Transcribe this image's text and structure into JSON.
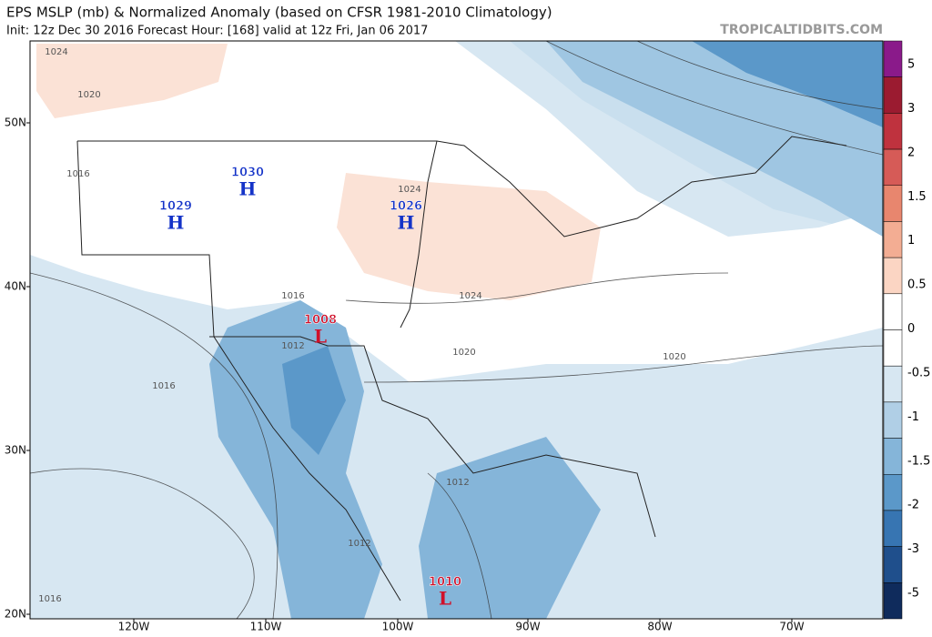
{
  "header": {
    "title": "EPS MSLP (mb) & Normalized Anomaly (based on CFSR 1981-2010 Climatology)",
    "subtitle": "Init: 12z Dec 30 2016   Forecast Hour: [168]   valid at 12z Fri, Jan 06 2017",
    "watermark": "TROPICALTIDBITS.COM"
  },
  "colorbar": {
    "labels": [
      5,
      3,
      2,
      1.5,
      1,
      0.5,
      0,
      -0.5,
      -1,
      -1.5,
      -2,
      -3,
      -5
    ],
    "colors": [
      "#8a1a8a",
      "#9b1b30",
      "#bf323e",
      "#d65b57",
      "#e8866e",
      "#f3ad93",
      "#fbd5c3",
      "#ffffff",
      "#ffffff",
      "#d7e7f2",
      "#b0cfe6",
      "#85b5d9",
      "#5b98c9",
      "#3775b2",
      "#1f4f8c",
      "#0f2b5c"
    ]
  },
  "axes": {
    "lat_labels": [
      "50N",
      "40N",
      "30N",
      "20N"
    ],
    "lon_labels": [
      "120W",
      "110W",
      "100W",
      "90W",
      "80W",
      "70W"
    ]
  },
  "centers": [
    {
      "letter": "H",
      "label": "1030"
    },
    {
      "letter": "H",
      "label": "1029"
    },
    {
      "letter": "H",
      "label": "1026"
    },
    {
      "letter": "L",
      "label": "1008"
    },
    {
      "letter": "L",
      "label": "1010"
    }
  ],
  "isobar_labels": [
    "1024",
    "1020",
    "1016",
    "1024",
    "1024",
    "1016",
    "1012",
    "1020",
    "1020",
    "1016",
    "1012",
    "1012",
    "1016"
  ]
}
